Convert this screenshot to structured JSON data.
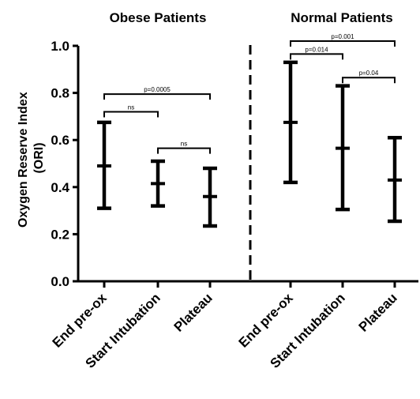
{
  "chart_data": {
    "type": "errorbar",
    "ylabel": "Oxygen Reserve Index (ORI)",
    "ylim": [
      0.0,
      1.0
    ],
    "yticks": [
      0.0,
      0.2,
      0.4,
      0.6,
      0.8,
      1.0
    ],
    "ytick_labels": [
      "0.0",
      "0.2",
      "0.4",
      "0.6",
      "0.8",
      "1.0"
    ],
    "grid": false,
    "divider": "dashed vertical line between panels",
    "panels": [
      {
        "title": "Obese Patients",
        "categories": [
          "End pre-ox",
          "Start Intubation",
          "Plateau"
        ],
        "mean": [
          0.49,
          0.415,
          0.36
        ],
        "low": [
          0.31,
          0.32,
          0.235
        ],
        "high": [
          0.675,
          0.51,
          0.48
        ],
        "comparisons": [
          {
            "from": 0,
            "to": 1,
            "label": "ns",
            "y": 0.72
          },
          {
            "from": 1,
            "to": 2,
            "label": "ns",
            "y": 0.565
          },
          {
            "from": 0,
            "to": 2,
            "label": "p=0.0005",
            "y": 0.795
          }
        ]
      },
      {
        "title": "Normal Patients",
        "categories": [
          "End pre-ox",
          "Start Intubation",
          "Plateau"
        ],
        "mean": [
          0.675,
          0.565,
          0.43
        ],
        "low": [
          0.42,
          0.305,
          0.255
        ],
        "high": [
          0.93,
          0.83,
          0.61
        ],
        "comparisons": [
          {
            "from": 0,
            "to": 1,
            "label": "p=0.014",
            "y": 0.965
          },
          {
            "from": 1,
            "to": 2,
            "label": "p=0.04",
            "y": 0.865
          },
          {
            "from": 0,
            "to": 2,
            "label": "p=0.001",
            "y": 1.02
          }
        ]
      }
    ]
  }
}
